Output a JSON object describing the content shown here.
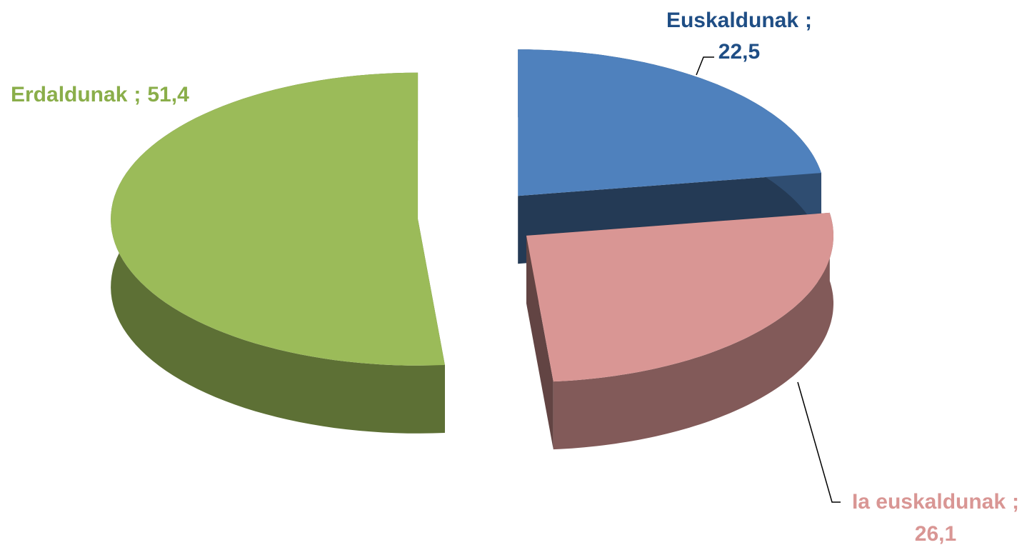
{
  "chart_data": {
    "type": "pie3d",
    "categories": [
      "Euskaldunak",
      "Ia euskaldunak",
      "Erdaldunak"
    ],
    "values": [
      22.5,
      26.1,
      51.4
    ],
    "value_labels": [
      "22,5",
      "26,1",
      "51,4"
    ],
    "label_separator": ";",
    "colors": [
      "#4f81bd",
      "#d99694",
      "#9bbb59"
    ],
    "label_colors": [
      "#1f4e85",
      "#d99694",
      "#8aae4a"
    ]
  }
}
